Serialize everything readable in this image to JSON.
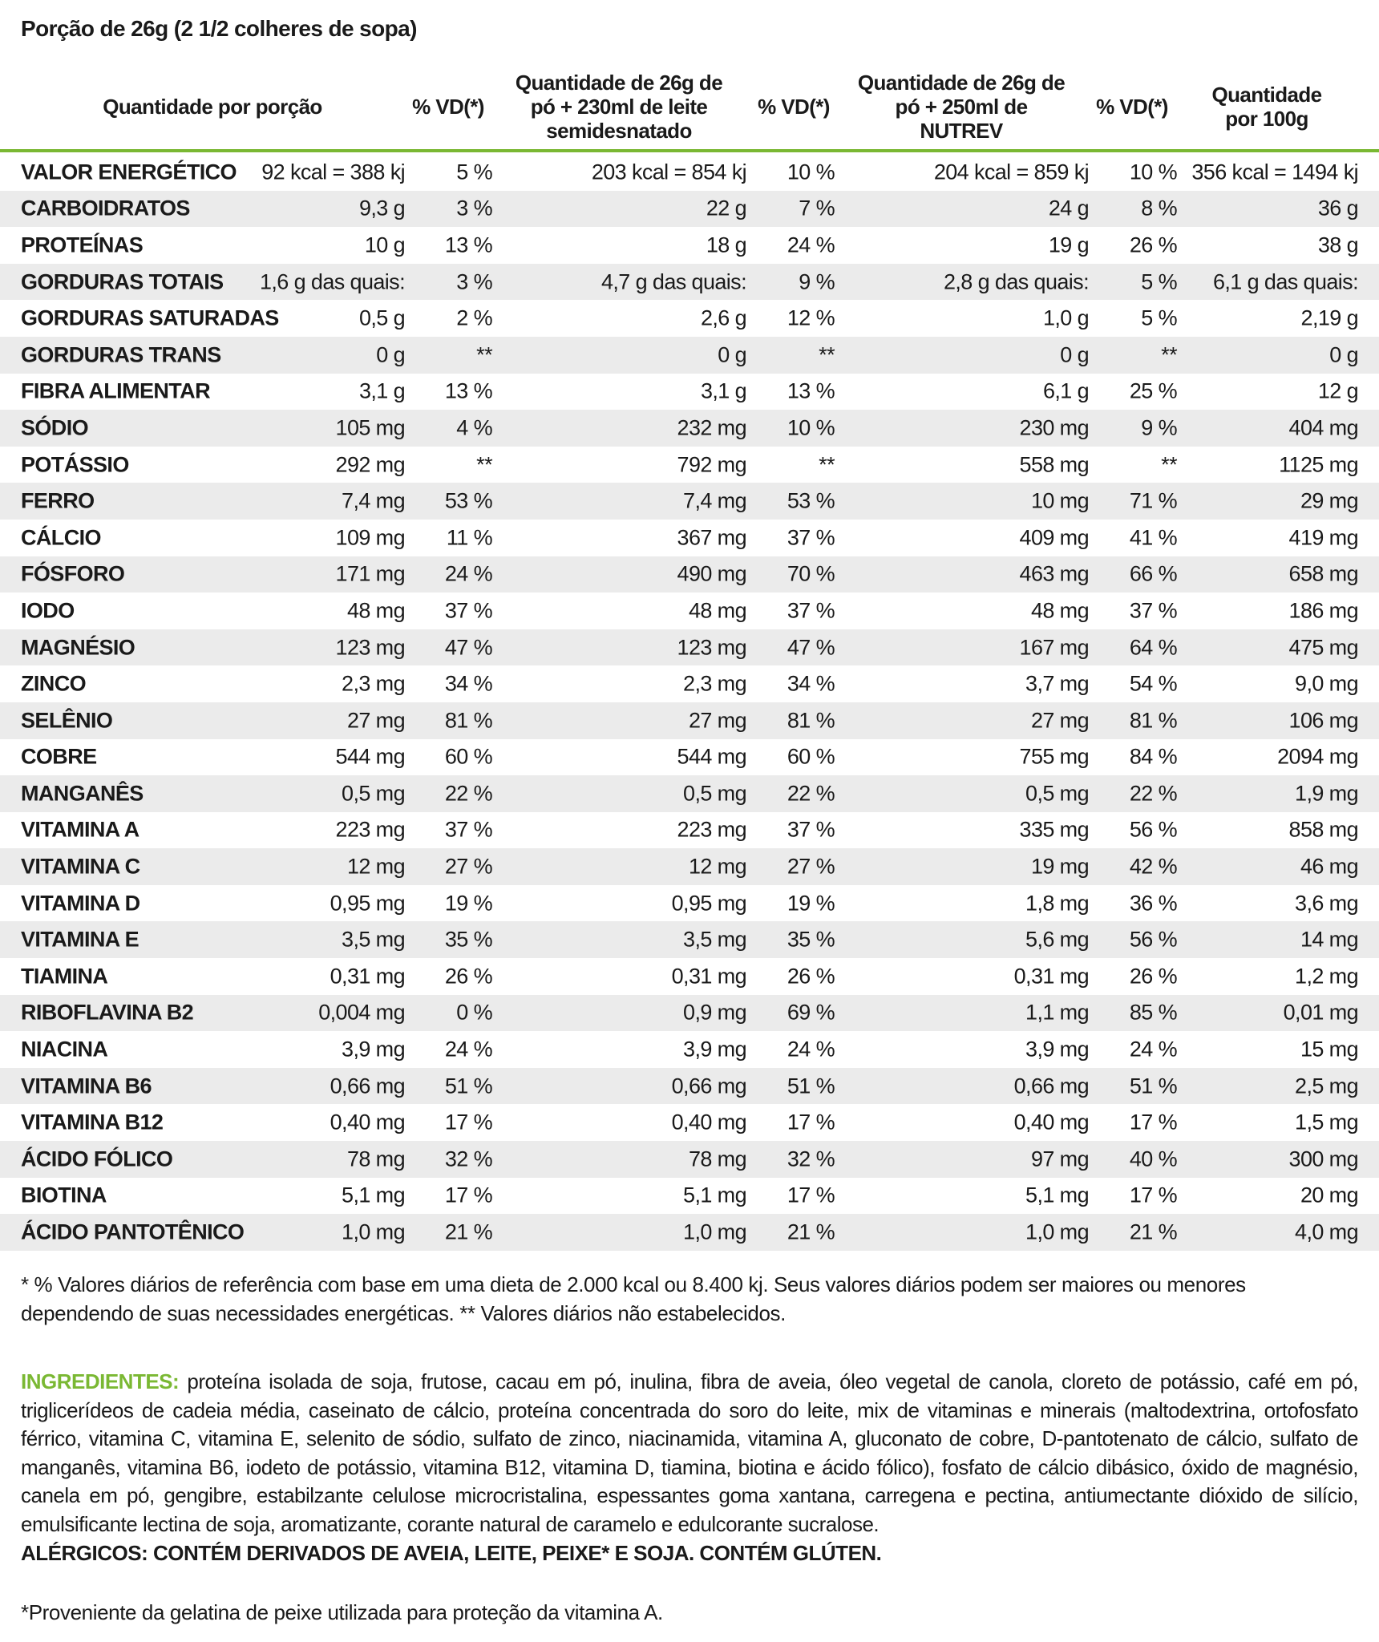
{
  "title": "Porção de 26g (2 1/2 colheres de sopa)",
  "accent_color": "#7ab833",
  "headers": [
    "Quantidade por porção",
    "% VD(*)",
    "Quantidade de 26g de pó + 230ml de leite semidesnatado",
    "% VD(*)",
    "Quantidade de 26g de pó + 250ml de NUTREV",
    "% VD(*)",
    "Quantidade por 100g"
  ],
  "rows": [
    [
      "VALOR ENERGÉTICO",
      "92 kcal = 388 kj",
      "5 %",
      "203 kcal = 854 kj",
      "10 %",
      "204 kcal = 859 kj",
      "10 %",
      "356 kcal = 1494 kj"
    ],
    [
      "CARBOIDRATOS",
      "9,3 g",
      "3 %",
      "22 g",
      "7 %",
      "24 g",
      "8 %",
      "36 g"
    ],
    [
      "PROTEÍNAS",
      "10 g",
      "13 %",
      "18 g",
      "24 %",
      "19 g",
      "26 %",
      "38 g"
    ],
    [
      "GORDURAS TOTAIS",
      "1,6 g das quais:",
      "3 %",
      "4,7 g das quais:",
      "9 %",
      "2,8 g das quais:",
      "5 %",
      "6,1 g das quais:"
    ],
    [
      "GORDURAS SATURADAS",
      "0,5 g",
      "2 %",
      "2,6 g",
      "12 %",
      "1,0 g",
      "5 %",
      "2,19 g"
    ],
    [
      "GORDURAS TRANS",
      "0 g",
      "**",
      "0 g",
      "**",
      "0 g",
      "**",
      "0 g"
    ],
    [
      "FIBRA ALIMENTAR",
      "3,1 g",
      "13 %",
      "3,1 g",
      "13 %",
      "6,1 g",
      "25 %",
      "12 g"
    ],
    [
      "SÓDIO",
      "105 mg",
      "4 %",
      "232 mg",
      "10 %",
      "230 mg",
      "9 %",
      "404 mg"
    ],
    [
      "POTÁSSIO",
      "292 mg",
      "**",
      "792 mg",
      "**",
      "558 mg",
      "**",
      "1125 mg"
    ],
    [
      "FERRO",
      "7,4 mg",
      "53 %",
      "7,4 mg",
      "53 %",
      "10 mg",
      "71 %",
      "29 mg"
    ],
    [
      "CÁLCIO",
      "109 mg",
      "11 %",
      "367 mg",
      "37 %",
      "409 mg",
      "41 %",
      "419 mg"
    ],
    [
      "FÓSFORO",
      "171 mg",
      "24 %",
      "490 mg",
      "70 %",
      "463 mg",
      "66 %",
      "658 mg"
    ],
    [
      "IODO",
      "48 mg",
      "37 %",
      "48 mg",
      "37 %",
      "48 mg",
      "37 %",
      "186 mg"
    ],
    [
      "MAGNÉSIO",
      "123 mg",
      "47 %",
      "123 mg",
      "47 %",
      "167 mg",
      "64 %",
      "475 mg"
    ],
    [
      "ZINCO",
      "2,3 mg",
      "34 %",
      "2,3 mg",
      "34 %",
      "3,7 mg",
      "54 %",
      "9,0 mg"
    ],
    [
      "SELÊNIO",
      "27 mg",
      "81 %",
      "27 mg",
      "81 %",
      "27 mg",
      "81 %",
      "106 mg"
    ],
    [
      "COBRE",
      "544 mg",
      "60 %",
      "544 mg",
      "60 %",
      "755 mg",
      "84 %",
      "2094 mg"
    ],
    [
      "MANGANÊS",
      "0,5 mg",
      "22 %",
      "0,5 mg",
      "22 %",
      "0,5 mg",
      "22 %",
      "1,9 mg"
    ],
    [
      "VITAMINA A",
      "223 mg",
      "37 %",
      "223 mg",
      "37 %",
      "335 mg",
      "56 %",
      "858 mg"
    ],
    [
      "VITAMINA C",
      "12 mg",
      "27 %",
      "12 mg",
      "27 %",
      "19 mg",
      "42 %",
      "46 mg"
    ],
    [
      "VITAMINA D",
      "0,95 mg",
      "19 %",
      "0,95 mg",
      "19 %",
      "1,8 mg",
      "36 %",
      "3,6 mg"
    ],
    [
      "VITAMINA E",
      "3,5 mg",
      "35 %",
      "3,5 mg",
      "35 %",
      "5,6 mg",
      "56 %",
      "14 mg"
    ],
    [
      "TIAMINA",
      "0,31 mg",
      "26 %",
      "0,31 mg",
      "26 %",
      "0,31 mg",
      "26 %",
      "1,2 mg"
    ],
    [
      "RIBOFLAVINA B2",
      "0,004 mg",
      "0 %",
      "0,9 mg",
      "69 %",
      "1,1 mg",
      "85 %",
      "0,01 mg"
    ],
    [
      "NIACINA",
      "3,9 mg",
      "24 %",
      "3,9 mg",
      "24 %",
      "3,9 mg",
      "24 %",
      "15 mg"
    ],
    [
      "VITAMINA B6",
      "0,66 mg",
      "51 %",
      "0,66 mg",
      "51 %",
      "0,66 mg",
      "51 %",
      "2,5 mg"
    ],
    [
      "VITAMINA B12",
      "0,40 mg",
      "17 %",
      "0,40 mg",
      "17 %",
      "0,40 mg",
      "17 %",
      "1,5 mg"
    ],
    [
      "ÁCIDO FÓLICO",
      "78 mg",
      "32 %",
      "78 mg",
      "32 %",
      "97 mg",
      "40 %",
      "300 mg"
    ],
    [
      "BIOTINA",
      "5,1 mg",
      "17 %",
      "5,1 mg",
      "17 %",
      "5,1 mg",
      "17 %",
      "20 mg"
    ],
    [
      "ÁCIDO PANTOTÊNICO",
      "1,0 mg",
      "21 %",
      "1,0 mg",
      "21 %",
      "1,0 mg",
      "21 %",
      "4,0 mg"
    ]
  ],
  "footnote": "* % Valores diários de referência com base em uma dieta de 2.000 kcal ou 8.400 kj. Seus valores diários podem ser maiores ou menores dependendo de suas necessidades energéticas. ** Valores diários não estabelecidos.",
  "ingredients_label": "INGREDIENTES:",
  "ingredients": " proteína isolada de soja, frutose, cacau em pó, inulina, fibra de aveia, óleo vegetal de canola, cloreto de potássio, café em pó, triglicerídeos de cadeia média, caseinato de cálcio, proteína concentrada do soro do leite, mix de vitaminas e minerais (maltodextrina, ortofosfato férrico, vitamina C, vitamina E, selenito de sódio, sulfato de zinco, niacinamida, vitamina A, gluconato de cobre, D-pantotenato de cálcio, sulfato de manganês, vitamina B6, iodeto de potássio, vitamina B12, vitamina D, tiamina, biotina e ácido fólico), fosfato de cálcio dibásico, óxido de magnésio, canela em pó, gengibre, estabilzante celulose microcristalina, espessantes goma xantana, carregena e pectina, antiumectante dióxido de silício, emulsificante lectina de soja, aromatizante, corante natural de caramelo e edulcorante sucralose.",
  "allergens": "ALÉRGICOS: CONTÉM DERIVADOS DE AVEIA, LEITE, PEIXE* E SOJA. CONTÉM GLÚTEN.",
  "fish_note": "*Proveniente da gelatina de peixe utilizada para proteção da vitamina A."
}
